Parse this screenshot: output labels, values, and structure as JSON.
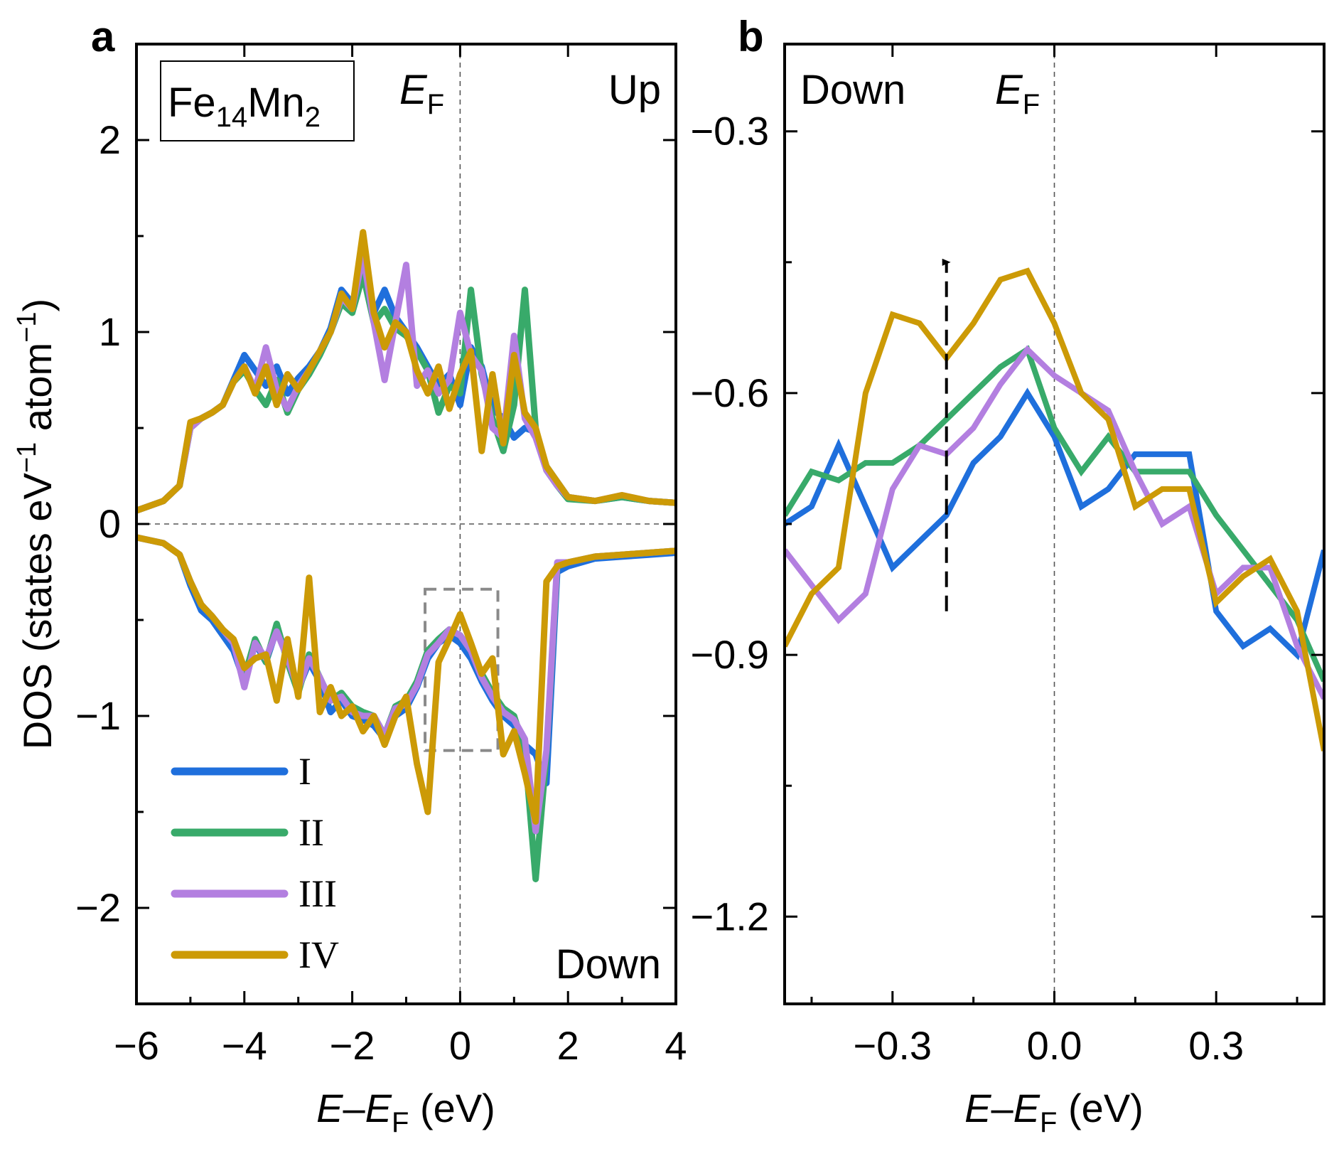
{
  "colors": {
    "I": "#1f6fdc",
    "II": "#38aa6a",
    "III": "#b37fe0",
    "IV": "#cc9a06",
    "zoom_box": "#8a8a8a"
  },
  "labels": {
    "panel_a": "a",
    "panel_b": "b",
    "compound_main": "Fe",
    "compound_sub1": "14",
    "compound_mid": "Mn",
    "compound_sub2": "2",
    "ef_main": "E",
    "ef_sub": "F",
    "up": "Up",
    "down": "Down",
    "ylabel_a": "DOS (states eV",
    "ylabel_a_sup1": "−1",
    "ylabel_a_mid": " atom",
    "ylabel_a_sup2": "−1",
    "ylabel_a_end": ")",
    "xlabel_E": "E",
    "xlabel_dash": "–",
    "xlabel_E2": "E",
    "xlabel_sub": "F",
    "xlabel_unit": " (eV)"
  },
  "legend": [
    "I",
    "II",
    "III",
    "IV"
  ],
  "chart_data": [
    {
      "panel": "a",
      "type": "line",
      "title": "",
      "xlabel": "E–EF (eV)",
      "ylabel": "DOS (states eV−1 atom−1)",
      "xlim": [
        -6,
        4
      ],
      "ylim": [
        -2.5,
        2.5
      ],
      "xticks": [
        -6,
        -4,
        -2,
        0,
        2,
        4
      ],
      "xtick_labels": [
        "−6",
        "−4",
        "−2",
        "0",
        "2",
        "4"
      ],
      "yticks": [
        -2,
        -1,
        0,
        1,
        2
      ],
      "ytick_labels": [
        "−2",
        "−1",
        "0",
        "1",
        "2"
      ],
      "reference_lines": {
        "x": 0,
        "y": 0
      },
      "zoom_box": {
        "x": [
          -0.65,
          0.7
        ],
        "y": [
          -1.18,
          -0.34
        ]
      },
      "series": [
        {
          "name": "I",
          "x": [
            -6,
            -5.5,
            -5.2,
            -5,
            -4.8,
            -4.6,
            -4.4,
            -4.2,
            -4,
            -3.8,
            -3.6,
            -3.4,
            -3.2,
            -3,
            -2.8,
            -2.6,
            -2.4,
            -2.2,
            -2,
            -1.8,
            -1.6,
            -1.4,
            -1.2,
            -1,
            -0.8,
            -0.6,
            -0.4,
            -0.2,
            0,
            0.2,
            0.4,
            0.6,
            0.8,
            1,
            1.2,
            1.4,
            1.6,
            1.8,
            2,
            2.5,
            3,
            3.5,
            4
          ],
          "y": [
            0.07,
            0.12,
            0.2,
            0.52,
            0.55,
            0.58,
            0.62,
            0.75,
            0.88,
            0.8,
            0.72,
            0.82,
            0.68,
            0.76,
            0.82,
            0.9,
            1.02,
            1.22,
            1.15,
            1.34,
            1.1,
            1.22,
            1.08,
            1.0,
            0.92,
            0.82,
            0.72,
            0.78,
            0.62,
            0.92,
            0.82,
            0.6,
            0.55,
            0.45,
            0.5,
            0.48,
            0.3,
            0.22,
            0.14,
            0.12,
            0.14,
            0.12,
            0.11
          ],
          "y_down": [
            -0.07,
            -0.1,
            -0.16,
            -0.32,
            -0.45,
            -0.5,
            -0.58,
            -0.66,
            -0.82,
            -0.62,
            -0.72,
            -0.55,
            -0.7,
            -0.86,
            -0.72,
            -0.82,
            -0.98,
            -0.92,
            -1.0,
            -1.02,
            -1.05,
            -1.12,
            -1.0,
            -0.96,
            -0.85,
            -0.7,
            -0.62,
            -0.58,
            -0.62,
            -0.7,
            -0.82,
            -0.92,
            -1.0,
            -1.05,
            -1.15,
            -1.2,
            -1.35,
            -0.25,
            -0.22,
            -0.18,
            -0.17,
            -0.16,
            -0.15
          ]
        },
        {
          "name": "II",
          "x": [
            -6,
            -5.5,
            -5.2,
            -5,
            -4.8,
            -4.6,
            -4.4,
            -4.2,
            -4,
            -3.8,
            -3.6,
            -3.4,
            -3.2,
            -3,
            -2.8,
            -2.6,
            -2.4,
            -2.2,
            -2,
            -1.8,
            -1.6,
            -1.4,
            -1.2,
            -1,
            -0.8,
            -0.6,
            -0.4,
            -0.2,
            0,
            0.2,
            0.4,
            0.6,
            0.8,
            1,
            1.2,
            1.4,
            1.6,
            1.8,
            2,
            2.5,
            3,
            3.5,
            4
          ],
          "y": [
            0.07,
            0.12,
            0.2,
            0.5,
            0.55,
            0.58,
            0.62,
            0.74,
            0.8,
            0.7,
            0.62,
            0.75,
            0.58,
            0.7,
            0.78,
            0.88,
            1.0,
            1.15,
            1.1,
            1.3,
            1.05,
            1.12,
            1.02,
            0.98,
            0.9,
            0.8,
            0.58,
            0.72,
            0.68,
            1.22,
            0.78,
            0.55,
            0.38,
            0.62,
            1.22,
            0.5,
            0.28,
            0.2,
            0.13,
            0.12,
            0.14,
            0.12,
            0.11
          ],
          "y_down": [
            -0.07,
            -0.1,
            -0.16,
            -0.3,
            -0.42,
            -0.48,
            -0.55,
            -0.62,
            -0.8,
            -0.6,
            -0.72,
            -0.52,
            -0.72,
            -0.88,
            -0.68,
            -0.8,
            -0.92,
            -0.88,
            -0.95,
            -0.98,
            -1.0,
            -1.1,
            -0.95,
            -0.92,
            -0.82,
            -0.66,
            -0.6,
            -0.55,
            -0.58,
            -0.66,
            -0.78,
            -0.88,
            -0.96,
            -1.0,
            -1.18,
            -1.85,
            -1.2,
            -0.22,
            -0.2,
            -0.17,
            -0.16,
            -0.15,
            -0.14
          ]
        },
        {
          "name": "III",
          "x": [
            -6,
            -5.5,
            -5.2,
            -5,
            -4.8,
            -4.6,
            -4.4,
            -4.2,
            -4,
            -3.8,
            -3.6,
            -3.4,
            -3.2,
            -3,
            -2.8,
            -2.6,
            -2.4,
            -2.2,
            -2,
            -1.8,
            -1.6,
            -1.4,
            -1.2,
            -1,
            -0.8,
            -0.6,
            -0.4,
            -0.2,
            0,
            0.2,
            0.4,
            0.6,
            0.8,
            1,
            1.2,
            1.4,
            1.6,
            1.8,
            2,
            2.5,
            3,
            3.5,
            4
          ],
          "y": [
            0.07,
            0.12,
            0.2,
            0.5,
            0.55,
            0.58,
            0.62,
            0.74,
            0.82,
            0.7,
            0.92,
            0.7,
            0.6,
            0.72,
            0.8,
            0.9,
            1.0,
            1.18,
            1.12,
            1.4,
            1.05,
            0.75,
            1.05,
            1.35,
            0.72,
            0.8,
            0.68,
            0.75,
            1.1,
            0.88,
            0.8,
            0.5,
            0.45,
            0.98,
            0.55,
            0.45,
            0.28,
            0.2,
            0.14,
            0.12,
            0.15,
            0.12,
            0.11
          ],
          "y_down": [
            -0.07,
            -0.1,
            -0.16,
            -0.3,
            -0.42,
            -0.48,
            -0.55,
            -0.62,
            -0.85,
            -0.62,
            -0.7,
            -0.56,
            -0.7,
            -0.86,
            -0.7,
            -0.8,
            -0.92,
            -0.9,
            -0.98,
            -1.0,
            -1.0,
            -1.1,
            -0.96,
            -0.94,
            -0.84,
            -0.68,
            -0.62,
            -0.55,
            -0.58,
            -0.66,
            -0.8,
            -0.9,
            -0.98,
            -1.02,
            -1.12,
            -1.6,
            -1.18,
            -0.2,
            -0.2,
            -0.17,
            -0.16,
            -0.15,
            -0.14
          ]
        },
        {
          "name": "IV",
          "x": [
            -6,
            -5.5,
            -5.2,
            -5,
            -4.8,
            -4.6,
            -4.4,
            -4.2,
            -4,
            -3.8,
            -3.6,
            -3.4,
            -3.2,
            -3,
            -2.8,
            -2.6,
            -2.4,
            -2.2,
            -2,
            -1.8,
            -1.6,
            -1.4,
            -1.2,
            -1,
            -0.8,
            -0.6,
            -0.4,
            -0.2,
            0,
            0.2,
            0.4,
            0.6,
            0.8,
            1,
            1.2,
            1.4,
            1.6,
            1.8,
            2,
            2.5,
            3,
            3.5,
            4
          ],
          "y": [
            0.07,
            0.12,
            0.2,
            0.53,
            0.55,
            0.58,
            0.62,
            0.74,
            0.82,
            0.68,
            0.82,
            0.62,
            0.78,
            0.7,
            0.8,
            0.9,
            1.0,
            1.2,
            1.12,
            1.52,
            1.1,
            0.92,
            1.05,
            1.0,
            0.8,
            0.68,
            0.82,
            0.6,
            0.78,
            0.9,
            0.38,
            0.78,
            0.42,
            0.88,
            0.58,
            0.5,
            0.3,
            0.22,
            0.14,
            0.12,
            0.15,
            0.12,
            0.11
          ],
          "y_down": [
            -0.07,
            -0.1,
            -0.16,
            -0.3,
            -0.42,
            -0.48,
            -0.55,
            -0.6,
            -0.75,
            -0.7,
            -0.68,
            -0.92,
            -0.6,
            -0.9,
            -0.28,
            -0.98,
            -0.85,
            -1.0,
            -0.95,
            -1.08,
            -1.0,
            -1.15,
            -1.0,
            -0.9,
            -1.25,
            -1.5,
            -0.72,
            -0.6,
            -0.47,
            -0.62,
            -0.78,
            -0.7,
            -1.2,
            -1.08,
            -1.3,
            -1.55,
            -0.3,
            -0.22,
            -0.2,
            -0.17,
            -0.16,
            -0.15,
            -0.14
          ]
        }
      ]
    },
    {
      "panel": "b",
      "type": "line",
      "title": "",
      "xlabel": "E–EF (eV)",
      "ylabel": "",
      "xlim": [
        -0.5,
        0.5
      ],
      "ylim": [
        -1.3,
        -0.2
      ],
      "xticks": [
        -0.3,
        0.0,
        0.3
      ],
      "xtick_labels": [
        "−0.3",
        "0.0",
        "0.3"
      ],
      "yticks": [
        -1.2,
        -0.9,
        -0.6,
        -0.3
      ],
      "ytick_labels": [
        "−1.2",
        "−0.9",
        "−0.6",
        "−0.3"
      ],
      "reference_lines": {
        "x": 0
      },
      "arrow": {
        "x": -0.2,
        "y_from": -0.85,
        "y_to": -0.45,
        "style": "dashed"
      },
      "series": [
        {
          "name": "I",
          "x": [
            -0.5,
            -0.45,
            -0.4,
            -0.35,
            -0.3,
            -0.25,
            -0.2,
            -0.15,
            -0.1,
            -0.05,
            0,
            0.05,
            0.1,
            0.15,
            0.2,
            0.25,
            0.3,
            0.35,
            0.4,
            0.45,
            0.5
          ],
          "y": [
            -0.75,
            -0.73,
            -0.66,
            -0.73,
            -0.8,
            -0.77,
            -0.74,
            -0.68,
            -0.65,
            -0.6,
            -0.65,
            -0.73,
            -0.71,
            -0.67,
            -0.67,
            -0.67,
            -0.85,
            -0.89,
            -0.87,
            -0.9,
            -0.78
          ]
        },
        {
          "name": "II",
          "x": [
            -0.5,
            -0.45,
            -0.4,
            -0.35,
            -0.3,
            -0.25,
            -0.2,
            -0.15,
            -0.1,
            -0.05,
            0,
            0.05,
            0.1,
            0.15,
            0.2,
            0.25,
            0.3,
            0.35,
            0.4,
            0.45,
            0.5
          ],
          "y": [
            -0.74,
            -0.69,
            -0.7,
            -0.68,
            -0.68,
            -0.66,
            -0.63,
            -0.6,
            -0.57,
            -0.55,
            -0.64,
            -0.69,
            -0.65,
            -0.69,
            -0.69,
            -0.69,
            -0.74,
            -0.78,
            -0.82,
            -0.86,
            -0.93
          ]
        },
        {
          "name": "III",
          "x": [
            -0.5,
            -0.45,
            -0.4,
            -0.35,
            -0.3,
            -0.25,
            -0.2,
            -0.15,
            -0.1,
            -0.05,
            0,
            0.05,
            0.1,
            0.15,
            0.2,
            0.25,
            0.3,
            0.35,
            0.4,
            0.45,
            0.5
          ],
          "y": [
            -0.78,
            -0.82,
            -0.86,
            -0.83,
            -0.71,
            -0.66,
            -0.67,
            -0.64,
            -0.59,
            -0.55,
            -0.58,
            -0.6,
            -0.62,
            -0.69,
            -0.75,
            -0.73,
            -0.83,
            -0.8,
            -0.8,
            -0.89,
            -0.95
          ]
        },
        {
          "name": "IV",
          "x": [
            -0.5,
            -0.45,
            -0.4,
            -0.35,
            -0.3,
            -0.25,
            -0.2,
            -0.15,
            -0.1,
            -0.05,
            0,
            0.05,
            0.1,
            0.15,
            0.2,
            0.25,
            0.3,
            0.35,
            0.4,
            0.45,
            0.5
          ],
          "y": [
            -0.89,
            -0.83,
            -0.8,
            -0.6,
            -0.51,
            -0.52,
            -0.56,
            -0.52,
            -0.47,
            -0.46,
            -0.52,
            -0.6,
            -0.63,
            -0.73,
            -0.71,
            -0.71,
            -0.84,
            -0.81,
            -0.79,
            -0.85,
            -1.01
          ]
        }
      ]
    }
  ]
}
